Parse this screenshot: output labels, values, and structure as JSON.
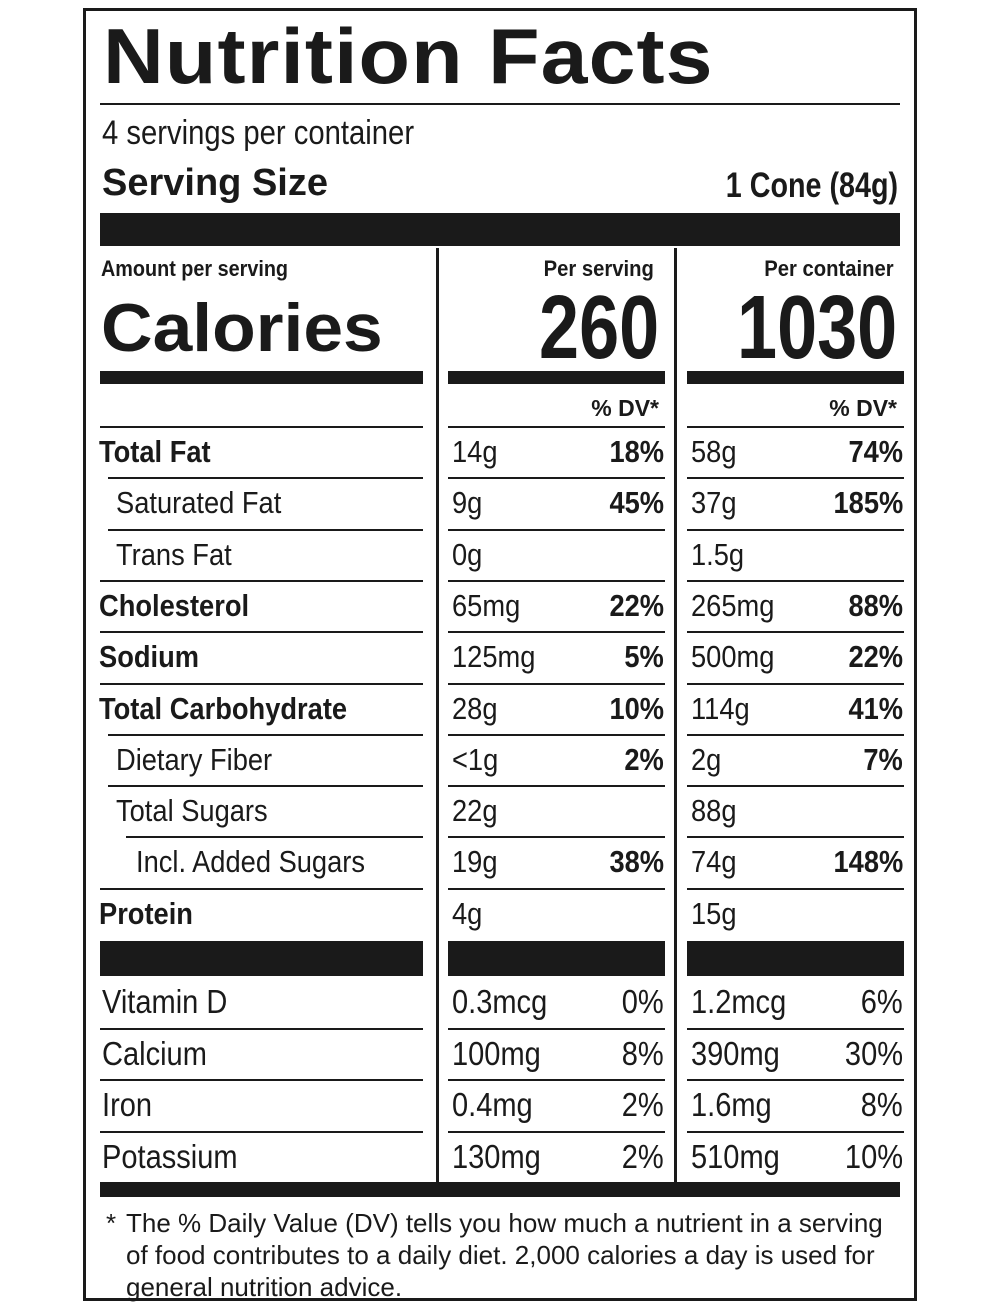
{
  "title": "Nutrition Facts",
  "servings_per_container": "4 servings per container",
  "serving_size": {
    "label": "Serving Size",
    "value": "1 Cone (84g)"
  },
  "amount_per_serving": "Amount per serving",
  "calories": {
    "label": "Calories",
    "per_serving_header": "Per serving",
    "per_container_header": "Per container",
    "per_serving": "260",
    "per_container": "1030"
  },
  "dv_header": "% DV*",
  "nutrients": [
    {
      "name": "Total Fat",
      "bold": true,
      "indent": 0,
      "serving_amount": "14g",
      "serving_dv": "18%",
      "container_amount": "58g",
      "container_dv": "74%"
    },
    {
      "name": "Saturated Fat",
      "bold": false,
      "indent": 1,
      "serving_amount": "9g",
      "serving_dv": "45%",
      "container_amount": "37g",
      "container_dv": "185%"
    },
    {
      "name": "Trans Fat",
      "bold": false,
      "indent": 1,
      "serving_amount": "0g",
      "serving_dv": "",
      "container_amount": "1.5g",
      "container_dv": ""
    },
    {
      "name": "Cholesterol",
      "bold": true,
      "indent": 0,
      "serving_amount": "65mg",
      "serving_dv": "22%",
      "container_amount": "265mg",
      "container_dv": "88%"
    },
    {
      "name": "Sodium",
      "bold": true,
      "indent": 0,
      "serving_amount": "125mg",
      "serving_dv": "5%",
      "container_amount": "500mg",
      "container_dv": "22%"
    },
    {
      "name": "Total Carbohydrate",
      "bold": true,
      "indent": 0,
      "serving_amount": "28g",
      "serving_dv": "10%",
      "container_amount": "114g",
      "container_dv": "41%"
    },
    {
      "name": "Dietary Fiber",
      "bold": false,
      "indent": 1,
      "serving_amount": "<1g",
      "serving_dv": "2%",
      "container_amount": "2g",
      "container_dv": "7%"
    },
    {
      "name": "Total Sugars",
      "bold": false,
      "indent": 1,
      "serving_amount": "22g",
      "serving_dv": "",
      "container_amount": "88g",
      "container_dv": ""
    },
    {
      "name": "Incl. Added Sugars",
      "bold": false,
      "indent": 2,
      "serving_amount": "19g",
      "serving_dv": "38%",
      "container_amount": "74g",
      "container_dv": "148%"
    },
    {
      "name": "Protein",
      "bold": true,
      "indent": 0,
      "serving_amount": "4g",
      "serving_dv": "",
      "container_amount": "15g",
      "container_dv": ""
    }
  ],
  "vitamins": [
    {
      "name": "Vitamin D",
      "serving_amount": "0.3mcg",
      "serving_dv": "0%",
      "container_amount": "1.2mcg",
      "container_dv": "6%"
    },
    {
      "name": "Calcium",
      "serving_amount": "100mg",
      "serving_dv": "8%",
      "container_amount": "390mg",
      "container_dv": "30%"
    },
    {
      "name": "Iron",
      "serving_amount": "0.4mg",
      "serving_dv": "2%",
      "container_amount": "1.6mg",
      "container_dv": "8%"
    },
    {
      "name": "Potassium",
      "serving_amount": "130mg",
      "serving_dv": "2%",
      "container_amount": "510mg",
      "container_dv": "10%"
    }
  ],
  "footnote": {
    "star": "*",
    "text": "The % Daily Value (DV) tells you how much a nutrient in a serving of food contributes to a daily diet. 2,000 calories a day is used for general nutrition advice."
  },
  "colors": {
    "ink": "#1a1a1a",
    "background": "#ffffff"
  }
}
